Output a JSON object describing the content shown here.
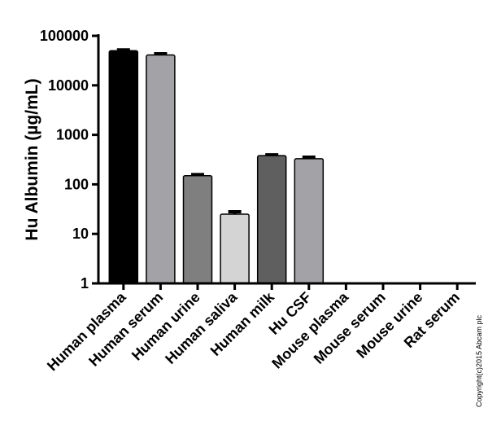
{
  "chart_data": {
    "type": "bar",
    "y_label": "Hu Albumin (µg/mL)",
    "categories": [
      "Human plasma",
      "Human serum",
      "Human urine",
      "Human saliva",
      "Human milk",
      "Hu CSF",
      "Mouse plasma",
      "Mouse serum",
      "Mouse urine",
      "Rat serum"
    ],
    "values": [
      50000,
      41000,
      150,
      25,
      380,
      330,
      null,
      null,
      null,
      null
    ],
    "errors": [
      2000,
      2500,
      8,
      3,
      15,
      25,
      null,
      null,
      null,
      null
    ],
    "colors": [
      "#000000",
      "#a3a3a7",
      "#7f7f7f",
      "#d4d4d4",
      "#5f5f5f",
      "#a3a3a7",
      "#a3a3a7",
      "#a3a3a7",
      "#a3a3a7",
      "#a3a3a7"
    ],
    "log_scale": true,
    "ylim": [
      1,
      100000
    ],
    "yticks": [
      1,
      10,
      100,
      1000,
      10000,
      100000
    ],
    "grid": false,
    "copyright": "Copyright(c)2015 Abcam plc"
  }
}
